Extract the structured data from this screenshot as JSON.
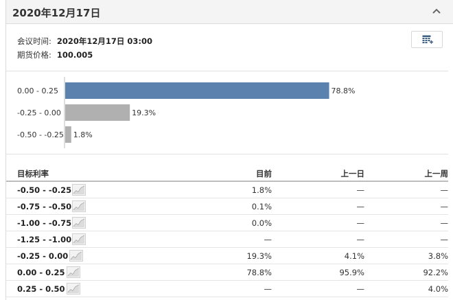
{
  "header": {
    "title": "2020年12月17日"
  },
  "meta": {
    "meeting_label": "会议时间:",
    "meeting_value": "2020年12月17日 03:00",
    "futures_label": "期货价格:",
    "futures_value": "100.005"
  },
  "chart_data": {
    "type": "bar",
    "orientation": "horizontal",
    "categories": [
      "0.00 - 0.25",
      "-0.25 - 0.00",
      "-0.50 - -0.25"
    ],
    "values": [
      78.8,
      19.3,
      1.8
    ],
    "value_labels": [
      "78.8%",
      "19.3%",
      "1.8%"
    ],
    "colors": [
      "#5b82ae",
      "#b0b0b0",
      "#b0b0b0"
    ],
    "xlim": [
      0,
      100
    ],
    "title": "",
    "xlabel": "",
    "ylabel": ""
  },
  "table": {
    "columns": [
      "目标利率",
      "目前",
      "上一日",
      "上一周"
    ],
    "rows": [
      {
        "range": "-0.50 - -0.25",
        "current": "1.8%",
        "prev_day": "—",
        "prev_week": "—"
      },
      {
        "range": "-0.75 - -0.50",
        "current": "0.1%",
        "prev_day": "—",
        "prev_week": "—"
      },
      {
        "range": "-1.00 - -0.75",
        "current": "0.0%",
        "prev_day": "—",
        "prev_week": "—"
      },
      {
        "range": "-1.25 - -1.00",
        "current": "—",
        "prev_day": "—",
        "prev_week": "—"
      },
      {
        "range": "-0.25 - 0.00",
        "current": "19.3%",
        "prev_day": "4.1%",
        "prev_week": "3.8%"
      },
      {
        "range": "0.00 - 0.25",
        "current": "78.8%",
        "prev_day": "95.9%",
        "prev_week": "92.2%"
      },
      {
        "range": "0.25 - 0.50",
        "current": "—",
        "prev_day": "—",
        "prev_week": "4.0%"
      }
    ]
  },
  "icons": {
    "collapse": "chevron-up-icon",
    "export": "table-export-icon",
    "sparkline": "sparkline-chart-icon"
  }
}
